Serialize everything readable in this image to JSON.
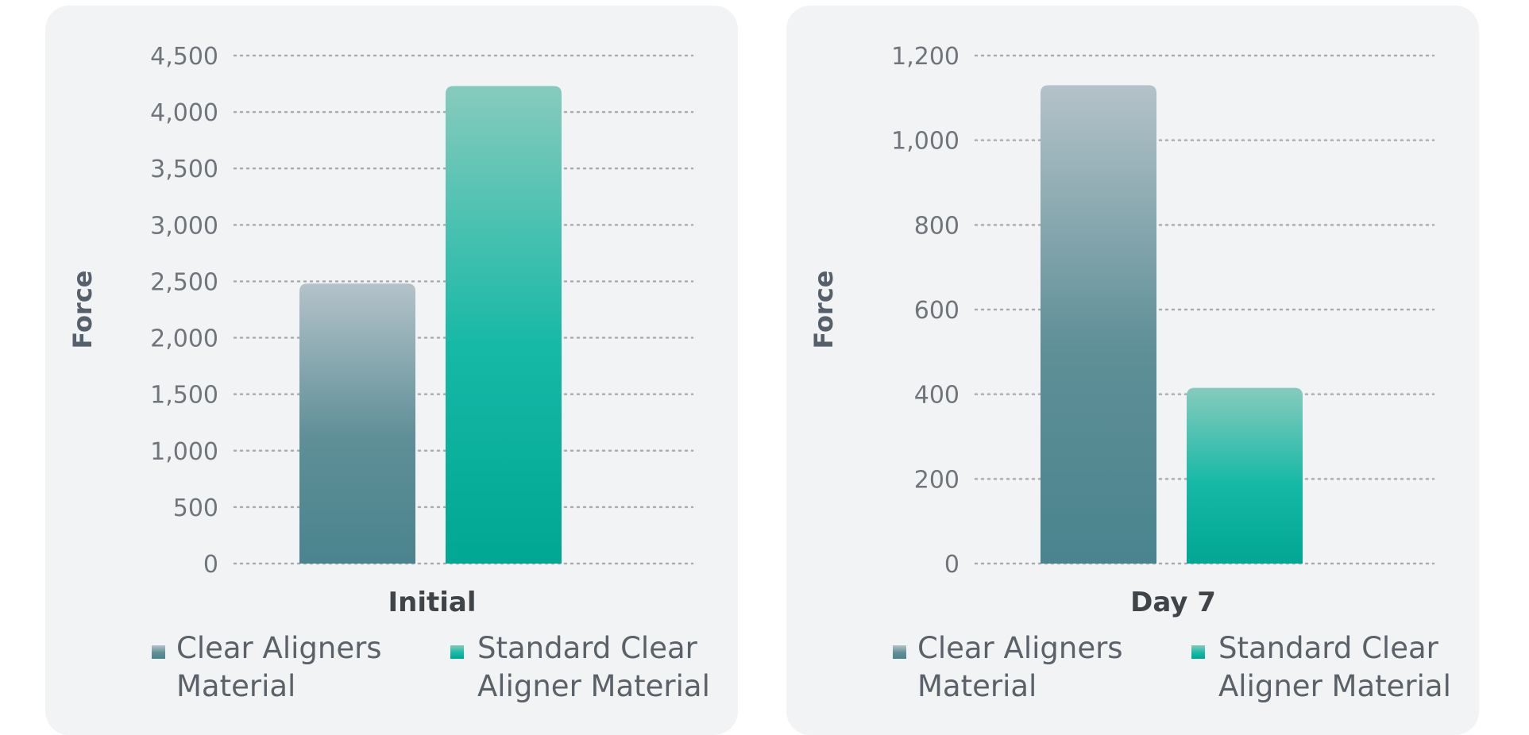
{
  "colors": {
    "panel_bg": "#f2f3f5",
    "grid": "#a9adb2",
    "clear_top": "#b4c2c9",
    "clear_bottom": "#4a848e",
    "standard_top": "#86cbbd",
    "standard_mid": "#16b8a6",
    "standard_bottom": "#00a793"
  },
  "legend": [
    {
      "lines": [
        "Clear Aligners",
        "Material"
      ],
      "swatch": "clear"
    },
    {
      "lines": [
        "Standard Clear",
        "Aligner Material"
      ],
      "swatch": "standard"
    }
  ],
  "chart_data": [
    {
      "type": "bar",
      "categories": [
        "Initial"
      ],
      "series": [
        {
          "name": "Clear Aligners Material",
          "values": [
            2480
          ]
        },
        {
          "name": "Standard Clear Aligner Material",
          "values": [
            4230
          ]
        }
      ],
      "xlabel": "Initial",
      "ylabel": "Force",
      "ylim": [
        0,
        4500
      ],
      "yticks": [
        0,
        500,
        1000,
        1500,
        2000,
        2500,
        3000,
        3500,
        4000,
        4500
      ],
      "ytick_labels": [
        "0",
        "500",
        "1,000",
        "1,500",
        "2,000",
        "2,500",
        "3,000",
        "3,500",
        "4,000",
        "4,500"
      ],
      "grid": "dotted-horizontal",
      "legend_placement": "bottom"
    },
    {
      "type": "bar",
      "categories": [
        "Day 7"
      ],
      "series": [
        {
          "name": "Clear Aligners Material",
          "values": [
            1130
          ]
        },
        {
          "name": "Standard Clear Aligner Material",
          "values": [
            415
          ]
        }
      ],
      "xlabel": "Day 7",
      "ylabel": "Force",
      "ylim": [
        0,
        1200
      ],
      "yticks": [
        0,
        200,
        400,
        600,
        800,
        1000,
        1200
      ],
      "ytick_labels": [
        "0",
        "200",
        "400",
        "600",
        "800",
        "1,000",
        "1,200"
      ],
      "grid": "dotted-horizontal",
      "legend_placement": "bottom"
    }
  ]
}
